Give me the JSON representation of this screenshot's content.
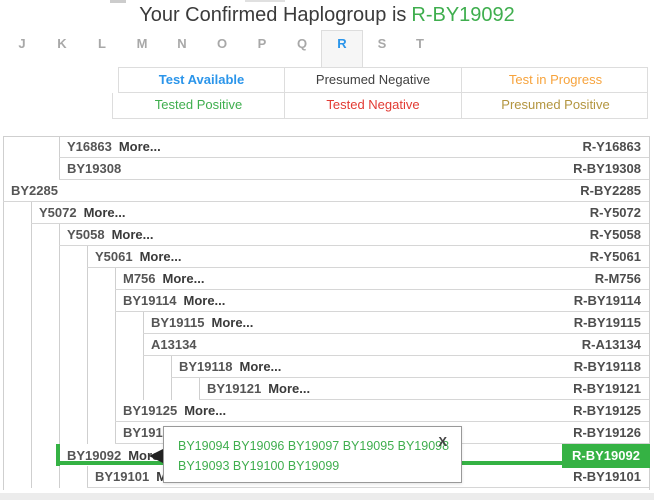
{
  "title": {
    "prefix": "Your Confirmed Haplogroup is",
    "haplogroup": "R-BY19092"
  },
  "nav_letters": {
    "letters": [
      "J",
      "K",
      "L",
      "M",
      "N",
      "O",
      "P",
      "Q",
      "R",
      "S",
      "T"
    ],
    "active": "R"
  },
  "legend": {
    "rows": [
      [
        {
          "label": "Test Available",
          "color": "blue"
        },
        {
          "label": "Presumed Negative",
          "color": "dark"
        },
        {
          "label": "Test in Progress",
          "color": "orange"
        }
      ],
      [
        {
          "label": "Tested Positive",
          "color": "green"
        },
        {
          "label": "Tested Negative",
          "color": "red"
        },
        {
          "label": "Presumed Positive",
          "color": "gold"
        }
      ]
    ]
  },
  "tree": {
    "more_label": "More...",
    "rows": [
      {
        "snp": "Y16863",
        "more": true,
        "label": "R-Y16863",
        "level": 2
      },
      {
        "snp": "BY19308",
        "more": false,
        "label": "R-BY19308",
        "level": 2
      },
      {
        "snp": "BY2285",
        "more": false,
        "label": "R-BY2285",
        "level": 0,
        "snp_color": "green"
      },
      {
        "snp": "Y5072",
        "more": true,
        "label": "R-Y5072",
        "level": 1,
        "snp_color": "green"
      },
      {
        "snp": "Y5058",
        "more": true,
        "label": "R-Y5058",
        "level": 2
      },
      {
        "snp": "Y5061",
        "more": true,
        "label": "R-Y5061",
        "level": 3
      },
      {
        "snp": "M756",
        "more": true,
        "label": "R-M756",
        "level": 4,
        "snp_color": "red"
      },
      {
        "snp": "BY19114",
        "more": true,
        "label": "R-BY19114",
        "level": 4
      },
      {
        "snp": "BY19115",
        "more": true,
        "label": "R-BY19115",
        "level": 5
      },
      {
        "snp": "A13134",
        "more": false,
        "label": "R-A13134",
        "level": 5
      },
      {
        "snp": "BY19118",
        "more": true,
        "label": "R-BY19118",
        "level": 6
      },
      {
        "snp": "BY19121",
        "more": true,
        "label": "R-BY19121",
        "level": 7
      },
      {
        "snp": "BY19125",
        "more": true,
        "label": "R-BY19125",
        "level": 4
      },
      {
        "snp": "BY19126",
        "more": false,
        "label": "R-BY19126",
        "level": 4
      },
      {
        "snp": "BY19092",
        "more": true,
        "label": "R-BY19092",
        "level": 2,
        "snp_color": "green",
        "highlight": true
      },
      {
        "snp": "BY19101",
        "more": true,
        "label": "R-BY19101",
        "level": 3
      }
    ]
  },
  "tooltip": {
    "lines": [
      "BY19094 BY19096 BY19097 BY19095 BY19098",
      "BY19093 BY19100 BY19099"
    ],
    "close_label": "X"
  },
  "colors": {
    "green_text": "#3fae4e",
    "green_badge": "#35b244",
    "blue": "#2b95ea",
    "red": "#e23b33",
    "orange": "#f7a33c",
    "gold": "#b3953f",
    "row_text": "#555555",
    "letter_gray": "#a8a8a8"
  }
}
